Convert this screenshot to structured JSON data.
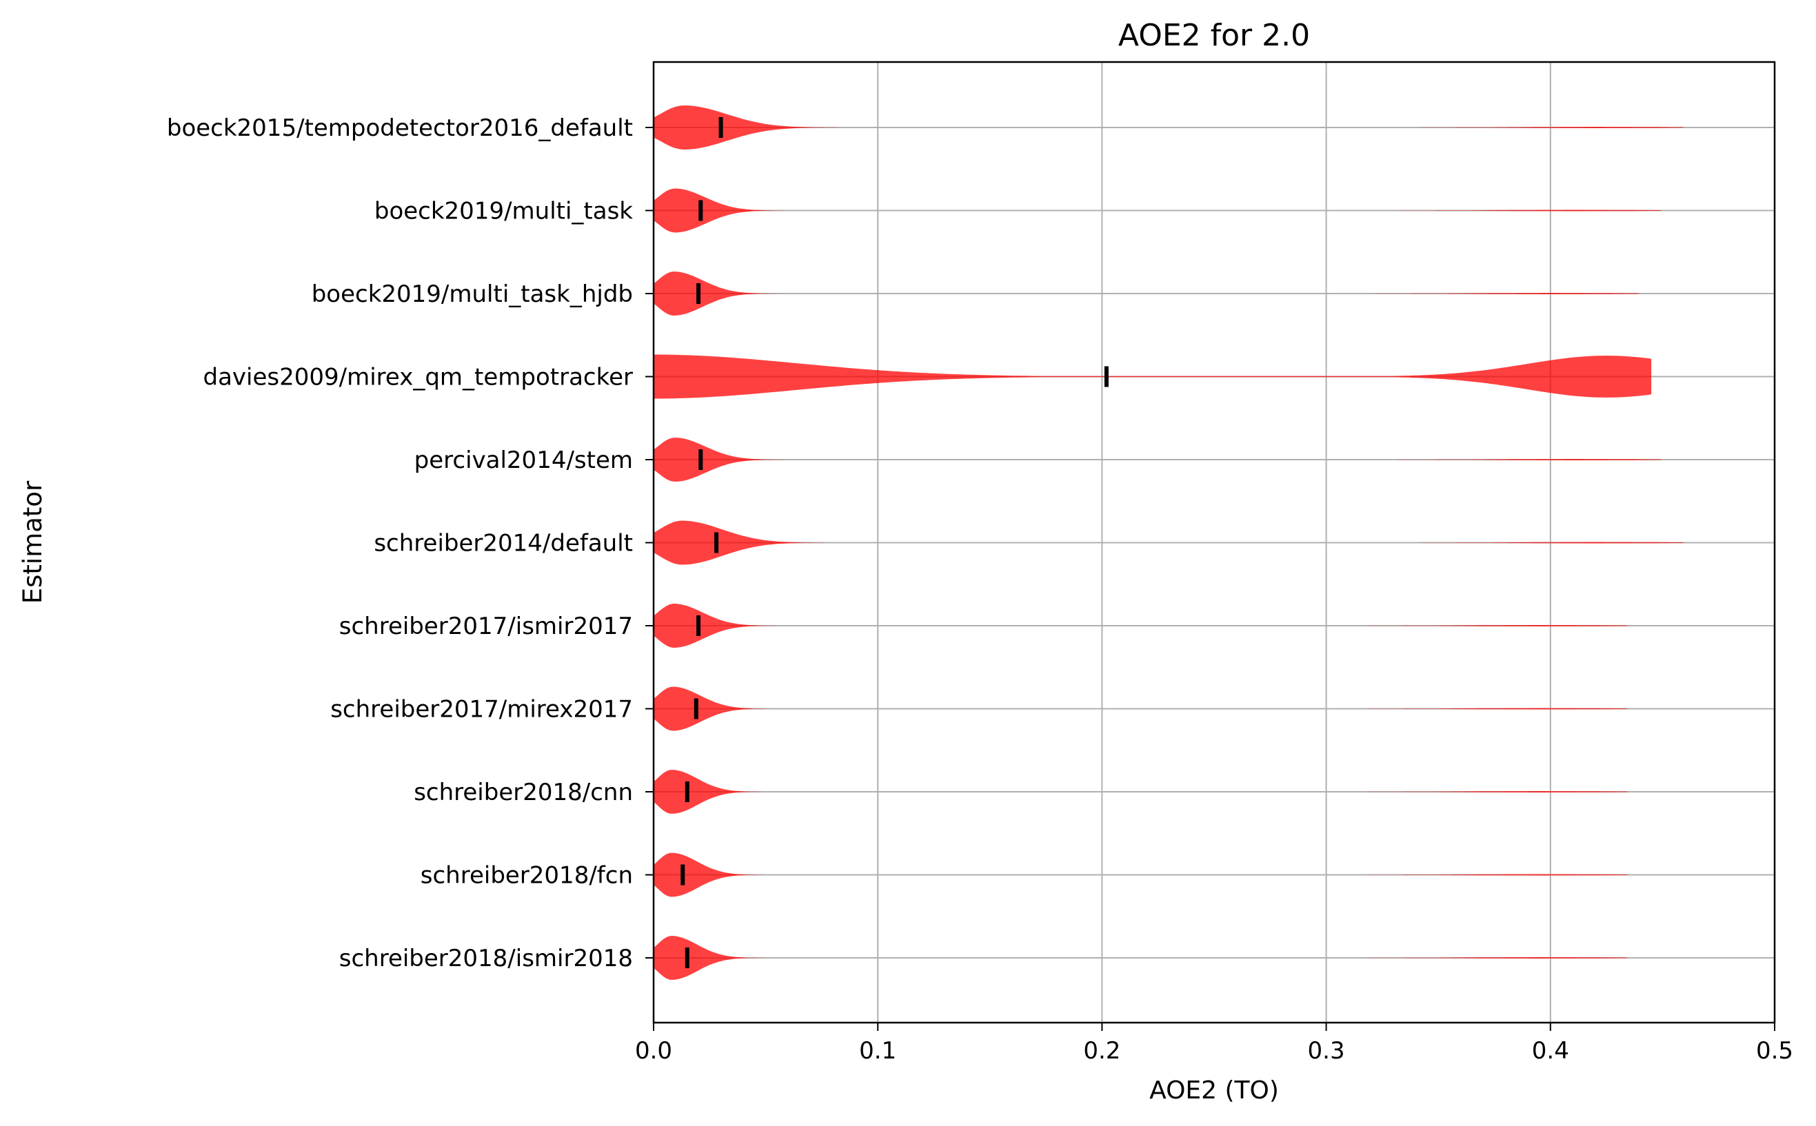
{
  "chart_data": {
    "type": "violin",
    "orientation": "horizontal",
    "title": "AOE2 for 2.0",
    "xlabel": "AOE2 (TO)",
    "ylabel": "Estimator",
    "xlim": [
      0.0,
      0.5
    ],
    "xticks": [
      "0.0",
      "0.1",
      "0.2",
      "0.3",
      "0.4",
      "0.5"
    ],
    "grid": true,
    "color": "#ff0000",
    "median_color": "#000000",
    "categories": [
      "boeck2015/tempodetector2016_default",
      "boeck2019/multi_task",
      "boeck2019/multi_task_hjdb",
      "davies2009/mirex_qm_tempotracker",
      "percival2014/stem",
      "schreiber2014/default",
      "schreiber2017/ismir2017",
      "schreiber2017/mirex2017",
      "schreiber2018/cnn",
      "schreiber2018/fcn",
      "schreiber2018/ismir2018"
    ],
    "medians": [
      0.03,
      0.021,
      0.02,
      0.202,
      0.021,
      0.028,
      0.02,
      0.019,
      0.015,
      0.013,
      0.015
    ],
    "max_values": [
      0.46,
      0.45,
      0.44,
      0.445,
      0.45,
      0.46,
      0.435,
      0.435,
      0.435,
      0.435,
      0.435
    ]
  }
}
